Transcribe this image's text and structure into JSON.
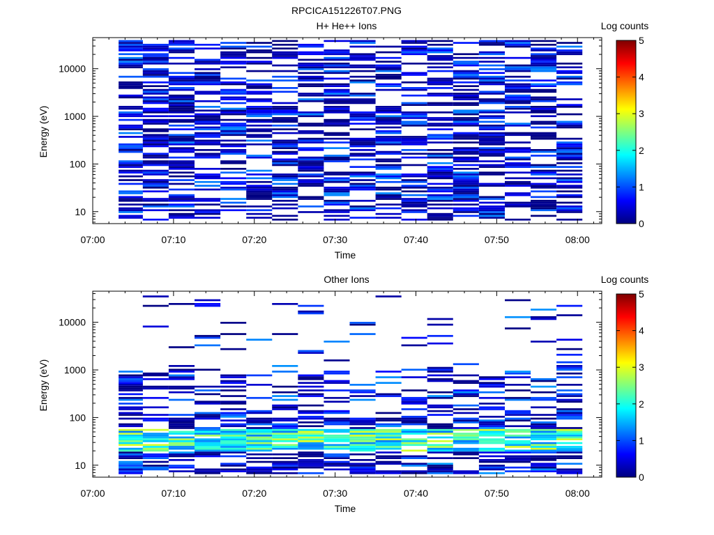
{
  "page": {
    "title": "RPCICA151226T07.PNG"
  },
  "colors": {
    "colormap": [
      "#00007f",
      "#0000ff",
      "#007fff",
      "#00ffff",
      "#7fff7f",
      "#ffff00",
      "#ff7f00",
      "#ff0000",
      "#7f0000"
    ]
  },
  "chart_data": [
    {
      "type": "heatmap",
      "title": "H+ He++ Ions",
      "xlabel": "Time",
      "ylabel": "Energy (eV)",
      "colorbar_label": "Log counts",
      "colorbar_ticks": [
        "0",
        "1",
        "2",
        "3",
        "4",
        "5"
      ],
      "x_ticks": [
        "07:00",
        "07:10",
        "07:20",
        "07:30",
        "07:40",
        "07:50",
        "08:00"
      ],
      "y_ticks": [
        "10",
        "100",
        "1000",
        "10000"
      ],
      "y_scale": "log",
      "ylim": [
        5.6,
        45000
      ],
      "xlim_minutes": [
        0,
        63
      ],
      "clim": [
        0,
        5
      ],
      "time_bins_minutes": [
        3.2,
        6.2,
        9.4,
        12.6,
        15.8,
        19.0,
        22.2,
        25.4,
        28.6,
        31.8,
        35.0,
        38.2,
        41.4,
        44.6,
        47.8,
        51.0,
        54.2,
        57.4,
        60.6
      ],
      "energy_range_eV": [
        6.5,
        40000
      ],
      "energy_bins": 96,
      "fill_fraction": 0.55,
      "value_range": [
        0.0,
        1.3
      ],
      "grid": false
    },
    {
      "type": "heatmap",
      "title": "Other Ions",
      "xlabel": "Time",
      "ylabel": "Energy (eV)",
      "colorbar_label": "Log counts",
      "colorbar_ticks": [
        "0",
        "1",
        "2",
        "3",
        "4",
        "5"
      ],
      "x_ticks": [
        "07:00",
        "07:10",
        "07:20",
        "07:30",
        "07:40",
        "07:50",
        "08:00"
      ],
      "y_ticks": [
        "10",
        "100",
        "1000",
        "10000"
      ],
      "y_scale": "log",
      "ylim": [
        5.6,
        45000
      ],
      "xlim_minutes": [
        0,
        63
      ],
      "clim": [
        0,
        5
      ],
      "time_bins_minutes": [
        3.2,
        6.2,
        9.4,
        12.6,
        15.8,
        19.0,
        22.2,
        25.4,
        28.6,
        31.8,
        35.0,
        38.2,
        41.4,
        44.6,
        47.8,
        51.0,
        54.2,
        57.4,
        60.6
      ],
      "energy_range_eV": [
        6.5,
        40000
      ],
      "energy_bins": 96,
      "enhanced_band": {
        "energy_eV": [
          20,
          60
        ],
        "value_range": [
          1.2,
          3.0
        ]
      },
      "value_range": [
        0.0,
        1.4
      ],
      "grid": false
    }
  ]
}
